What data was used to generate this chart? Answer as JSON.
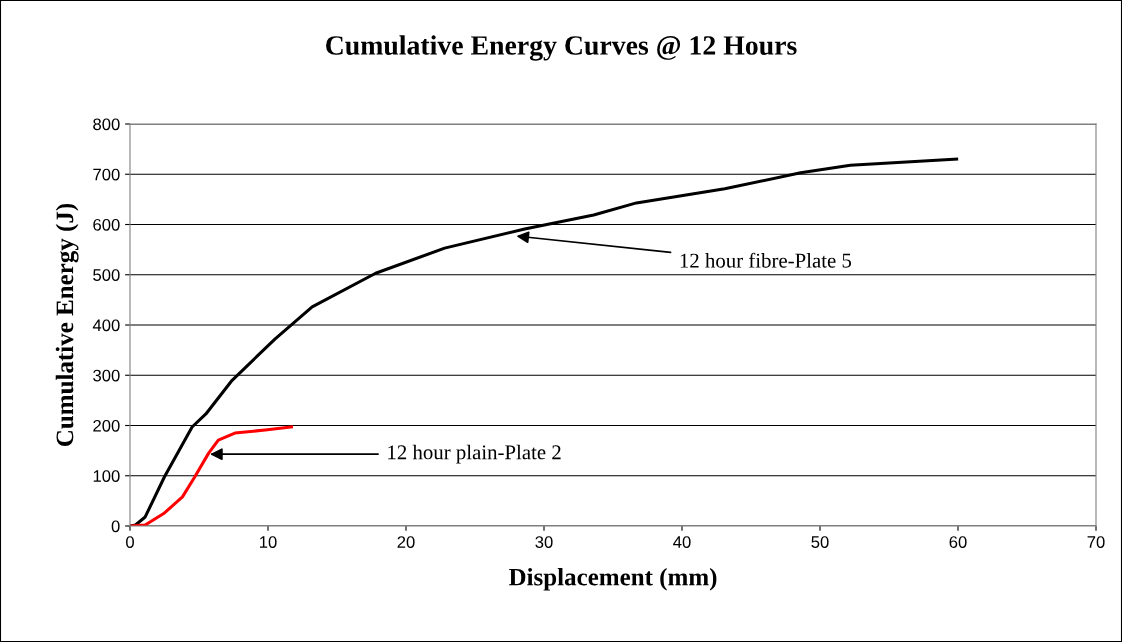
{
  "chart_data": {
    "type": "line",
    "title": "Cumulative Energy Curves @ 12 Hours",
    "xlabel": "Displacement (mm)",
    "ylabel": "Cumulative Energy (J)",
    "xlim": [
      0,
      70
    ],
    "xticks": [
      0,
      10,
      20,
      30,
      40,
      50,
      60,
      70
    ],
    "ylim": [
      0,
      800
    ],
    "yticks": [
      0,
      100,
      200,
      300,
      400,
      500,
      600,
      700,
      800
    ],
    "grid": "y",
    "legend": false,
    "marker": "none",
    "line_style": "solid",
    "series": [
      {
        "color": "#000000",
        "x": [
          0,
          0.4,
          1.1,
          2.5,
          4.5,
          5.5,
          7.4,
          10.5,
          13.2,
          17.8,
          22.8,
          28.6,
          33.6,
          36.7,
          43.1,
          48.6,
          52.2,
          59.9
        ],
        "values": [
          0,
          2,
          18,
          98,
          197,
          223,
          290,
          372,
          436,
          503,
          553,
          591,
          619,
          643,
          671,
          703,
          718,
          730
        ]
      },
      {
        "color": "#ff0000",
        "x": [
          0,
          1.1,
          2.5,
          3.8,
          4.7,
          5.7,
          6.4,
          7.6,
          9.8,
          11.7
        ],
        "values": [
          0,
          2,
          26,
          58,
          98,
          145,
          171,
          185,
          191,
          197
        ]
      }
    ],
    "annotations": [
      {
        "text": "12 hour fibre-Plate 5",
        "x": 28,
        "y": 577
      },
      {
        "text": "12 hour plain-Plate 2",
        "x": 5.8,
        "y": 143
      }
    ]
  }
}
